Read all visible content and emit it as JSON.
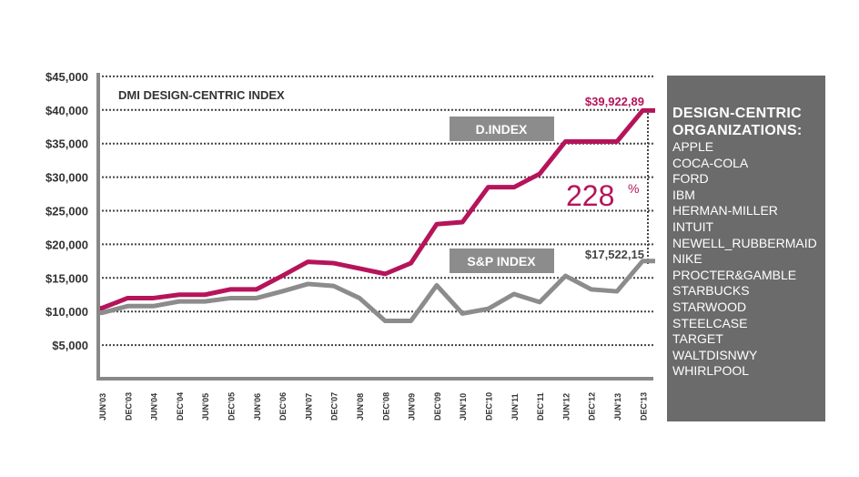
{
  "chart_data": {
    "type": "line",
    "title": "DMI DESIGN-CENTRIC INDEX",
    "xlabel": "",
    "ylabel": "",
    "ylim": [
      0,
      45000
    ],
    "yticks": [
      5000,
      10000,
      15000,
      20000,
      25000,
      30000,
      35000,
      40000,
      45000
    ],
    "ytick_labels": [
      "$5,000",
      "$10,000",
      "$15,000",
      "$20,000",
      "$25,000",
      "$30,000",
      "$35,000",
      "$40,000",
      "$45,000"
    ],
    "grid": true,
    "categories": [
      "JUN'03",
      "DEC'03",
      "JUN'04",
      "DEC'04",
      "JUN'05",
      "DEC'05",
      "JUN'06",
      "DEC'06",
      "JUN'07",
      "DEC'07",
      "JUN'08",
      "DEC'08",
      "JUN'09",
      "DEC'09",
      "JUN'10",
      "DEC'10",
      "JUN'11",
      "DEC'11",
      "JUN'12",
      "DEC'12",
      "JUN'13",
      "DEC'13"
    ],
    "series": [
      {
        "name": "D.INDEX",
        "color": "#b5145a",
        "values": [
          10500,
          12000,
          12000,
          12500,
          12500,
          13300,
          13300,
          15300,
          17400,
          17200,
          16400,
          15600,
          17200,
          23000,
          23300,
          28500,
          28500,
          30500,
          35300,
          35300,
          35300,
          39923
        ],
        "end_label": "$39,922,89"
      },
      {
        "name": "S&P INDEX",
        "color": "#8c8c8c",
        "values": [
          9800,
          10800,
          10800,
          11500,
          11500,
          12000,
          12000,
          13000,
          14100,
          13800,
          12000,
          8600,
          8600,
          13900,
          9700,
          10400,
          12600,
          11400,
          15300,
          13300,
          13000,
          17522
        ],
        "end_label": "$17,522,15"
      }
    ],
    "annotation": {
      "value": "228",
      "unit": "%"
    },
    "legend_placement": "inline"
  },
  "panel": {
    "title_lines": [
      "DESIGN-CENTRIC",
      "ORGANIZATIONS:"
    ],
    "items": [
      "APPLE",
      "COCA-COLA",
      "FORD",
      "IBM",
      "HERMAN-MILLER",
      "INTUIT",
      "NEWELL_RUBBERMAID",
      "NIKE",
      "PROCTER&GAMBLE",
      "STARBUCKS",
      "STARWOOD",
      "STEELCASE",
      "TARGET",
      "WALTDISNWY",
      "WHIRLPOOL"
    ]
  }
}
